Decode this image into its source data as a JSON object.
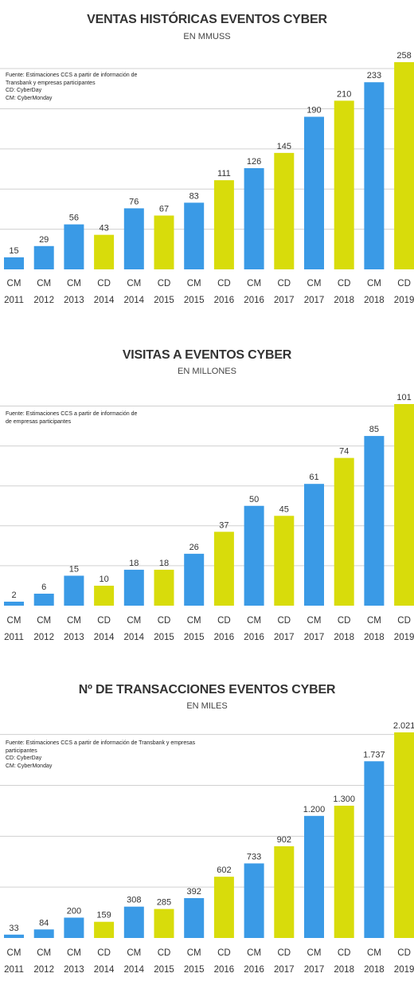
{
  "colors": {
    "CM": "#3a9ae6",
    "CD": "#d8dc0b",
    "grid": "#d0d0d0"
  },
  "chart_data": [
    {
      "type": "bar",
      "title": "VENTAS HISTÓRICAS EVENTOS CYBER",
      "subtitle": "EN MMUSS",
      "source_lines": [
        "Fuente: Estimaciones CCS a partir de información de",
        "Transbank y empresas participantes",
        "CD: CyberDay",
        "CM: CyberMonday"
      ],
      "categories": [
        [
          "CM",
          "2011"
        ],
        [
          "CM",
          "2012"
        ],
        [
          "CM",
          "2013"
        ],
        [
          "CD",
          "2014"
        ],
        [
          "CM",
          "2014"
        ],
        [
          "CD",
          "2015"
        ],
        [
          "CM",
          "2015"
        ],
        [
          "CD",
          "2016"
        ],
        [
          "CM",
          "2016"
        ],
        [
          "CD",
          "2017"
        ],
        [
          "CM",
          "2017"
        ],
        [
          "CD",
          "2018"
        ],
        [
          "CM",
          "2018"
        ],
        [
          "CD",
          "2019"
        ]
      ],
      "values": [
        15,
        29,
        56,
        43,
        76,
        67,
        83,
        111,
        126,
        145,
        190,
        210,
        233,
        258
      ],
      "labels": [
        "15",
        "29",
        "56",
        "43",
        "76",
        "67",
        "83",
        "111",
        "126",
        "145",
        "190",
        "210",
        "233",
        "258"
      ],
      "ylim": [
        0,
        258
      ],
      "grid_step": 50
    },
    {
      "type": "bar",
      "title": "VISITAS A EVENTOS CYBER",
      "subtitle": "EN MILLONES",
      "source_lines": [
        "Fuente: Estimaciones CCS a partir de información de",
        "de empresas participantes"
      ],
      "categories": [
        [
          "CM",
          "2011"
        ],
        [
          "CM",
          "2012"
        ],
        [
          "CM",
          "2013"
        ],
        [
          "CD",
          "2014"
        ],
        [
          "CM",
          "2014"
        ],
        [
          "CD",
          "2015"
        ],
        [
          "CM",
          "2015"
        ],
        [
          "CD",
          "2016"
        ],
        [
          "CM",
          "2016"
        ],
        [
          "CD",
          "2017"
        ],
        [
          "CM",
          "2017"
        ],
        [
          "CD",
          "2018"
        ],
        [
          "CM",
          "2018"
        ],
        [
          "CD",
          "2019"
        ]
      ],
      "values": [
        2,
        6,
        15,
        10,
        18,
        18,
        26,
        37,
        50,
        45,
        61,
        74,
        85,
        101
      ],
      "labels": [
        "2",
        "6",
        "15",
        "10",
        "18",
        "18",
        "26",
        "37",
        "50",
        "45",
        "61",
        "74",
        "85",
        "101"
      ],
      "ylim": [
        0,
        101
      ],
      "grid_step": 20
    },
    {
      "type": "bar",
      "title": "Nº DE TRANSACCIONES EVENTOS CYBER",
      "subtitle": "EN MILES",
      "source_lines": [
        "Fuente: Estimaciones CCS a partir de información de Transbank y empresas",
        "participantes",
        "CD: CyberDay",
        "CM: CyberMonday"
      ],
      "categories": [
        [
          "CM",
          "2011"
        ],
        [
          "CM",
          "2012"
        ],
        [
          "CM",
          "2013"
        ],
        [
          "CD",
          "2014"
        ],
        [
          "CM",
          "2014"
        ],
        [
          "CD",
          "2015"
        ],
        [
          "CM",
          "2015"
        ],
        [
          "CD",
          "2016"
        ],
        [
          "CM",
          "2016"
        ],
        [
          "CD",
          "2017"
        ],
        [
          "CM",
          "2017"
        ],
        [
          "CD",
          "2018"
        ],
        [
          "CM",
          "2018"
        ],
        [
          "CD",
          "2019"
        ]
      ],
      "values": [
        33,
        84,
        200,
        159,
        308,
        285,
        392,
        602,
        733,
        902,
        1200,
        1300,
        1737,
        2021
      ],
      "labels": [
        "33",
        "84",
        "200",
        "159",
        "308",
        "285",
        "392",
        "602",
        "733",
        "902",
        "1.200",
        "1.300",
        "1.737",
        "2.021"
      ],
      "ylim": [
        0,
        2021
      ],
      "grid_step": 500
    }
  ]
}
